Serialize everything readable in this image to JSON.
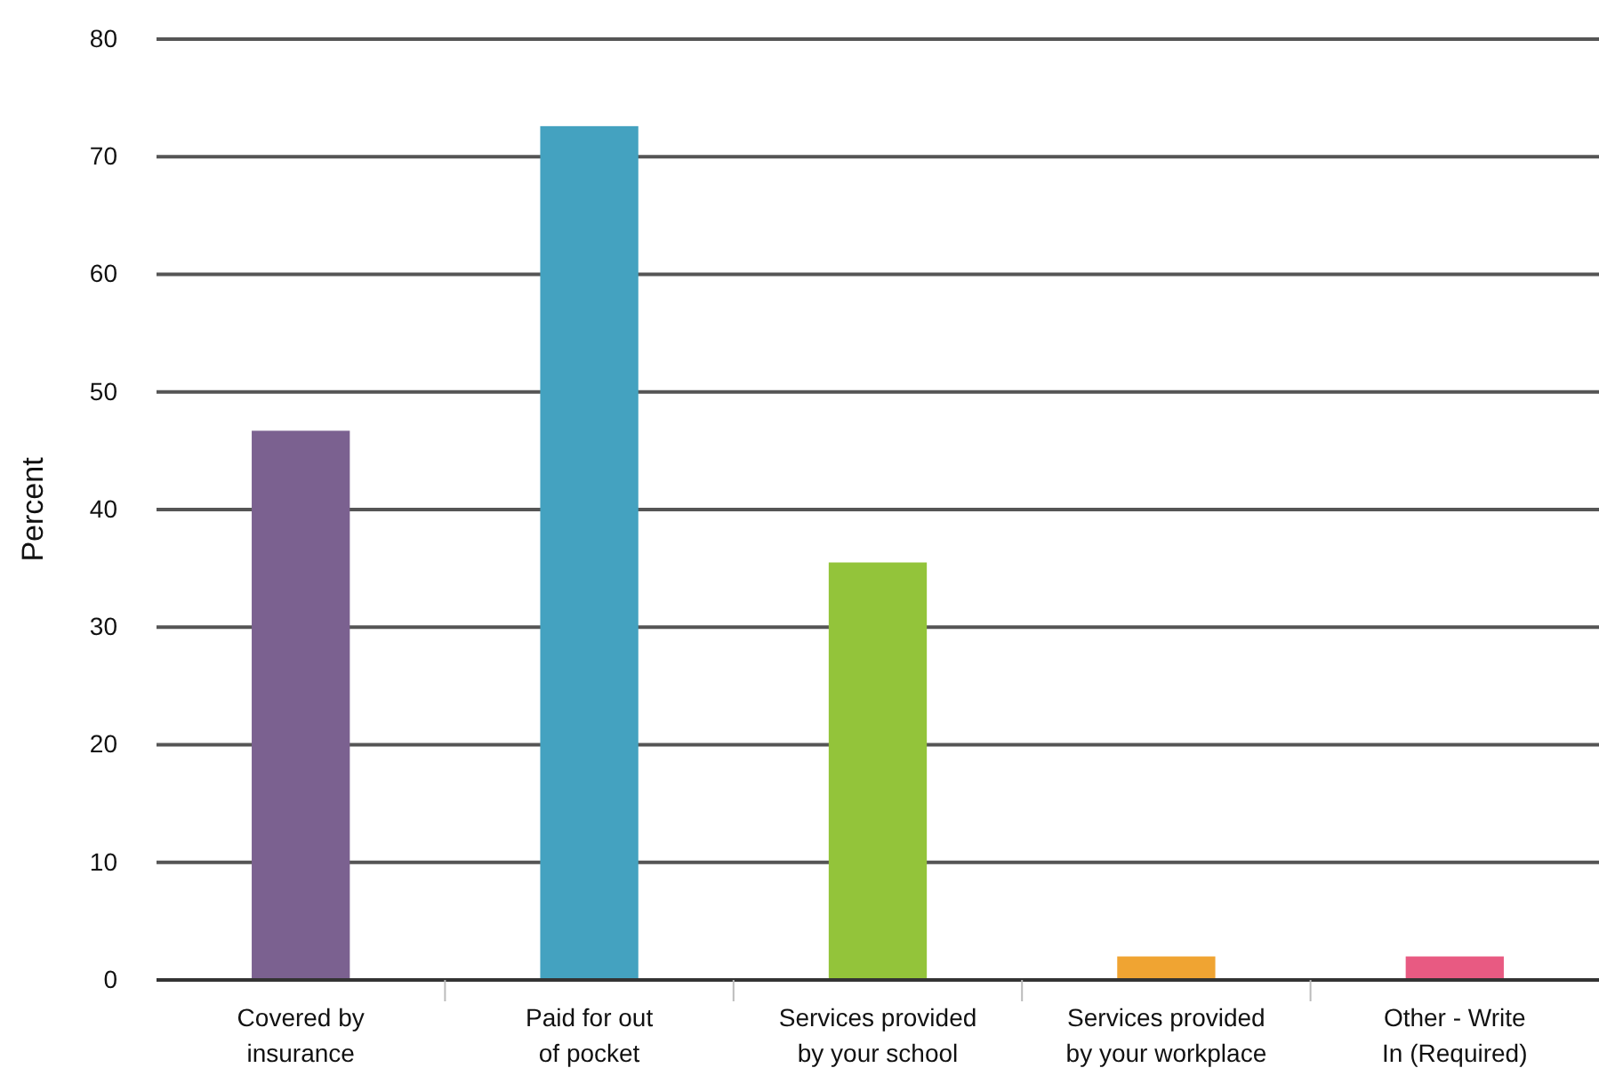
{
  "chart_data": {
    "type": "bar",
    "ylabel": "Percent",
    "categories": [
      "Covered by insurance",
      "Paid for out of pocket",
      "Services provided by your school",
      "Services provided by your workplace",
      "Other - Write In (Required)"
    ],
    "values": [
      46.7,
      72.6,
      35.5,
      2.0,
      2.0
    ],
    "colors": [
      "#7b6190",
      "#44a2c0",
      "#93c43a",
      "#f0a432",
      "#e85a82"
    ],
    "ylim": [
      0,
      80
    ],
    "yticks": [
      0,
      10,
      20,
      30,
      40,
      50,
      60,
      70,
      80
    ],
    "grid": "y"
  }
}
